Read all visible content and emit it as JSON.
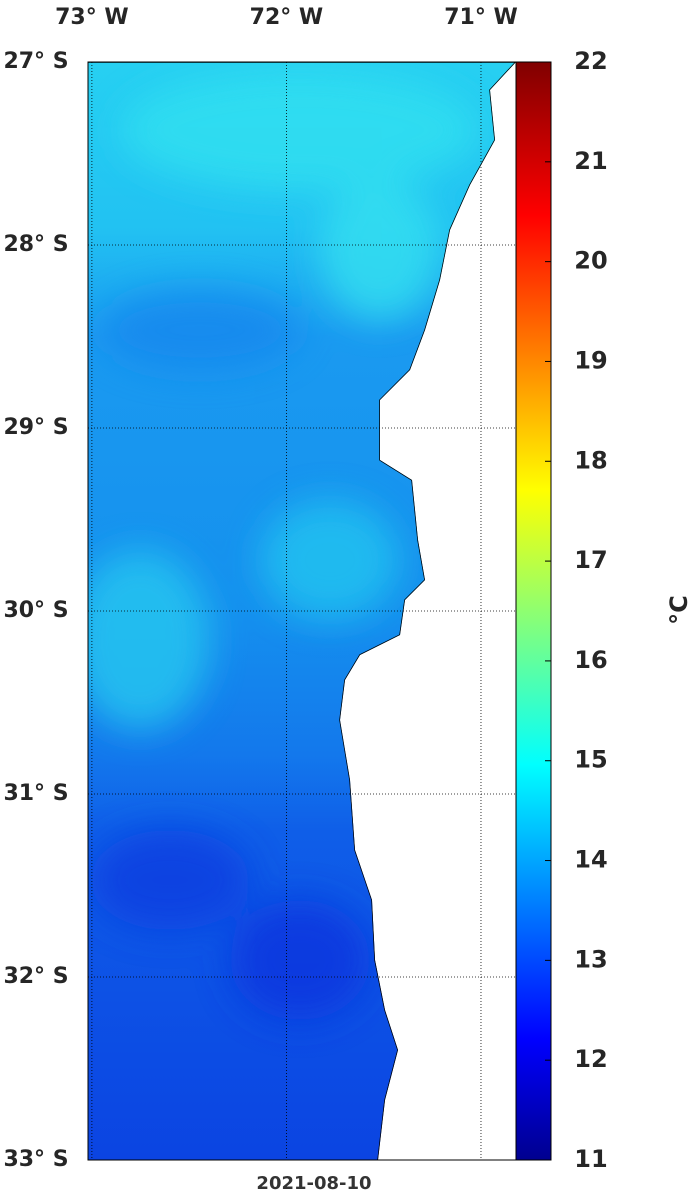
{
  "map": {
    "lon_ticks": [
      {
        "value": -73,
        "label": "73° W"
      },
      {
        "value": -72,
        "label": "72° W"
      },
      {
        "value": -71,
        "label": "71° W"
      }
    ],
    "lat_ticks": [
      {
        "value": -27,
        "label": "27° S"
      },
      {
        "value": -28,
        "label": "28° S"
      },
      {
        "value": -29,
        "label": "29° S"
      },
      {
        "value": -30,
        "label": "30° S"
      },
      {
        "value": -31,
        "label": "31° S"
      },
      {
        "value": -32,
        "label": "32° S"
      },
      {
        "value": -33,
        "label": "33° S"
      }
    ],
    "xlim": [
      -73.02,
      -70.82
    ],
    "ylim": [
      -33,
      -27
    ],
    "date": "2021-08-10"
  },
  "colorbar": {
    "lim": [
      11,
      22
    ],
    "ticks": [
      11,
      12,
      13,
      14,
      15,
      16,
      17,
      18,
      19,
      20,
      21,
      22
    ],
    "label": "°C",
    "colormap": "jet"
  }
}
